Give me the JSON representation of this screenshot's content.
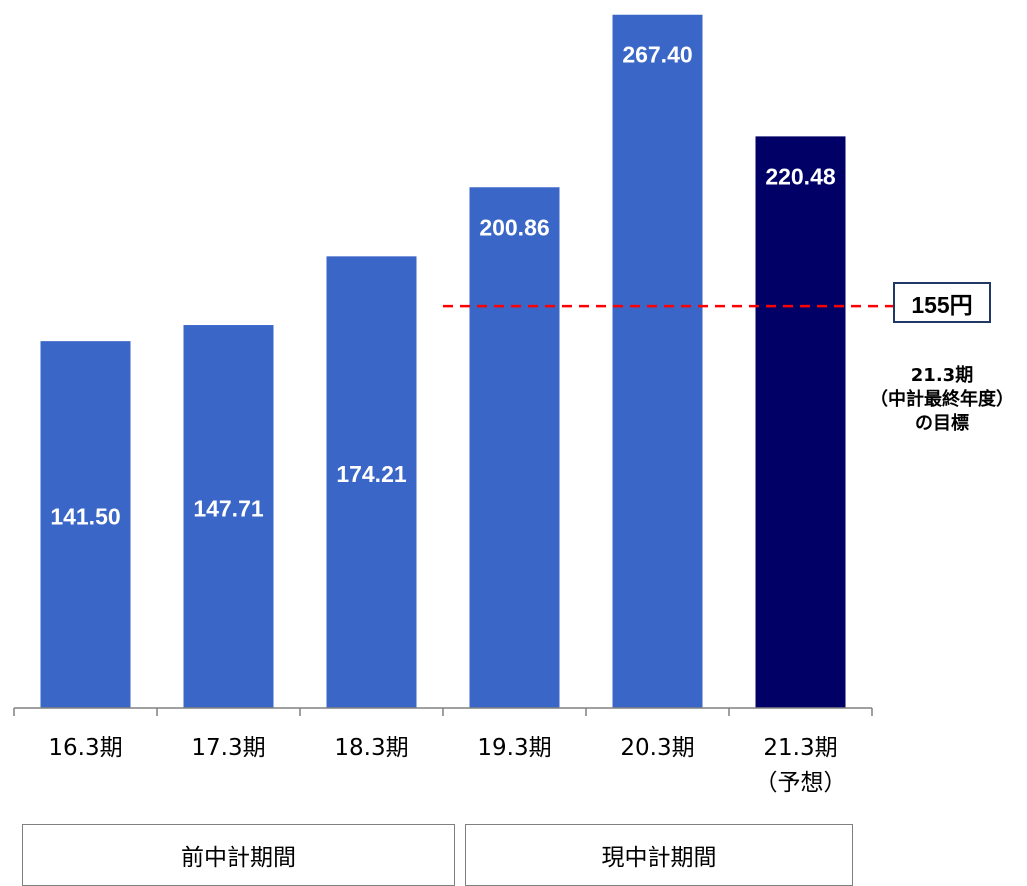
{
  "chart_data": {
    "type": "bar",
    "categories": [
      "16.3期",
      "17.3期",
      "18.3期",
      "19.3期",
      "20.3期",
      "21.3期"
    ],
    "category_sublabels": [
      "",
      "",
      "",
      "",
      "",
      "（予想）"
    ],
    "values": [
      141.5,
      147.71,
      174.21,
      200.86,
      267.4,
      220.48
    ],
    "value_labels": [
      "141.50",
      "147.71",
      "174.21",
      "200.86",
      "267.40",
      "220.48"
    ],
    "bar_colors": [
      "#3a66c7",
      "#3a66c7",
      "#3a66c7",
      "#3a66c7",
      "#3a66c7",
      "#000066"
    ],
    "ylim": [
      0,
      270
    ],
    "grid": false,
    "reference_line": {
      "value": 155,
      "color": "#ff0000",
      "style": "dashed",
      "from_category": "19.3期"
    }
  },
  "target": {
    "label": "155円",
    "note_lines": [
      "21.3期",
      "（中計最終年度）",
      "の目標"
    ]
  },
  "periods": [
    {
      "label": "前中計期間"
    },
    {
      "label": "現中計期間"
    }
  ]
}
